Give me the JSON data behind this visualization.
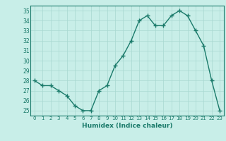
{
  "x": [
    0,
    1,
    2,
    3,
    4,
    5,
    6,
    7,
    8,
    9,
    10,
    11,
    12,
    13,
    14,
    15,
    16,
    17,
    18,
    19,
    20,
    21,
    22,
    23
  ],
  "y": [
    28,
    27.5,
    27.5,
    27,
    26.5,
    25.5,
    25,
    25,
    27,
    27.5,
    29.5,
    30.5,
    32,
    34,
    34.5,
    33.5,
    33.5,
    34.5,
    35,
    34.5,
    33,
    31.5,
    28,
    25
  ],
  "line_color": "#1a7a6a",
  "marker_color": "#1a7a6a",
  "bg_color": "#c8eee8",
  "grid_color": "#a8d8d0",
  "xlabel": "Humidex (Indice chaleur)",
  "ylim": [
    24.5,
    35.5
  ],
  "xlim": [
    -0.5,
    23.5
  ],
  "yticks": [
    25,
    26,
    27,
    28,
    29,
    30,
    31,
    32,
    33,
    34,
    35
  ],
  "xticks": [
    0,
    1,
    2,
    3,
    4,
    5,
    6,
    7,
    8,
    9,
    10,
    11,
    12,
    13,
    14,
    15,
    16,
    17,
    18,
    19,
    20,
    21,
    22,
    23
  ],
  "xtick_labels": [
    "0",
    "1",
    "2",
    "3",
    "4",
    "5",
    "6",
    "7",
    "8",
    "9",
    "10",
    "11",
    "12",
    "13",
    "14",
    "15",
    "16",
    "17",
    "18",
    "19",
    "20",
    "21",
    "22",
    "23"
  ],
  "line_width": 1.0,
  "marker_size": 4
}
